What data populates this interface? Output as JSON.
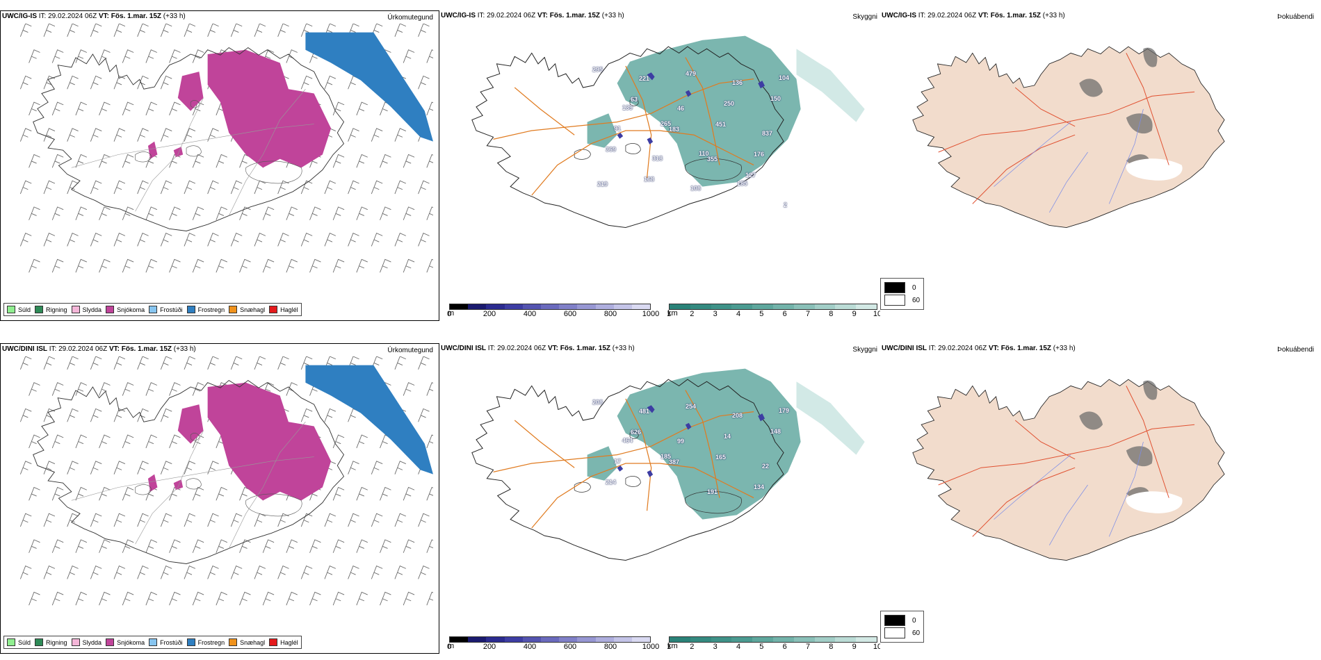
{
  "panels": [
    {
      "model": "UWC/IG-IS",
      "it_label": "IT:",
      "it_value": "29.02.2024 06Z",
      "vt_label": "VT:",
      "vt_value": "Fös. 1.mar. 15Z",
      "lead": "(+33 h)",
      "title": "Úrkomutegund",
      "kind": "ptype"
    },
    {
      "model": "UWC/IG-IS",
      "it_label": "IT:",
      "it_value": "29.02.2024 06Z",
      "vt_label": "VT:",
      "vt_value": "Fös. 1.mar. 15Z",
      "lead": "(+33 h)",
      "title": "Skyggni",
      "kind": "vis",
      "labels": [
        "295",
        "221",
        "479",
        "136",
        "104",
        "63",
        "46",
        "250",
        "150",
        "139",
        "183",
        "451",
        "837",
        "91",
        "265",
        "355",
        "176",
        "369",
        "318",
        "110",
        "127",
        "219",
        "168",
        "108",
        "185",
        "2"
      ]
    },
    {
      "model": "UWC/IG-IS",
      "it_label": "IT:",
      "it_value": "29.02.2024 06Z",
      "vt_label": "VT:",
      "vt_value": "Fös. 1.mar. 15Z",
      "lead": "(+33 h)",
      "title": "Þokuábendi",
      "kind": "fog"
    },
    {
      "model": "UWC/DINI ISL",
      "it_label": "IT:",
      "it_value": "29.02.2024 06Z",
      "vt_label": "VT:",
      "vt_value": "Fös. 1.mar. 15Z",
      "lead": "(+33 h)",
      "title": "Úrkomutegund",
      "kind": "ptype"
    },
    {
      "model": "UWC/DINI ISL",
      "it_label": "IT:",
      "it_value": "29.02.2024 06Z",
      "vt_label": "VT:",
      "vt_value": "Fös. 1.mar. 15Z",
      "lead": "(+33 h)",
      "title": "Skyggni",
      "kind": "vis",
      "labels": [
        "208",
        "481",
        "254",
        "208",
        "179",
        "626",
        "99",
        "14",
        "148",
        "464",
        "387",
        "165",
        "22",
        "17",
        "185",
        "191",
        "134",
        "214"
      ]
    },
    {
      "model": "UWC/DINI ISL",
      "it_label": "IT:",
      "it_value": "29.02.2024 06Z",
      "vt_label": "VT:",
      "vt_value": "Fös. 1.mar. 15Z",
      "lead": "(+33 h)",
      "title": "Þokuábendi",
      "kind": "fog"
    }
  ],
  "ptype_legend": [
    {
      "label": "Súld",
      "color": "#90ee90"
    },
    {
      "label": "Rigning",
      "color": "#2e8b57"
    },
    {
      "label": "Slydda",
      "color": "#f4b6d8"
    },
    {
      "label": "Snjókoma",
      "color": "#c0449a"
    },
    {
      "label": "Frostúði",
      "color": "#87c5f0"
    },
    {
      "label": "Frostregn",
      "color": "#2f7fc1"
    },
    {
      "label": "Snæhagl",
      "color": "#f0921c"
    },
    {
      "label": "Haglél",
      "color": "#e41a1c"
    }
  ],
  "height_bar": {
    "unit": "m",
    "ticks": [
      "0",
      "200",
      "400",
      "600",
      "800",
      "1000"
    ],
    "colors": [
      "#000000",
      "#1a1a6e",
      "#2b2b8f",
      "#3d3da3",
      "#5454b0",
      "#6a6abd",
      "#8080c8",
      "#9797d3",
      "#aeaede",
      "#c4c4e8",
      "#dadaf2"
    ]
  },
  "vis_bar": {
    "unit": "km",
    "ticks": [
      "1",
      "2",
      "3",
      "4",
      "5",
      "6",
      "7",
      "8",
      "9",
      "10"
    ],
    "colors": [
      "#2a8278",
      "#348a80",
      "#3f9288",
      "#4b9b91",
      "#5ea79d",
      "#73b3aa",
      "#8ac0b8",
      "#a2cec7",
      "#bbdcd6",
      "#d3e9e5"
    ]
  },
  "sky_legend": [
    {
      "value": "0",
      "color": "#000000"
    },
    {
      "value": "60",
      "color": "#ffffff"
    }
  ]
}
